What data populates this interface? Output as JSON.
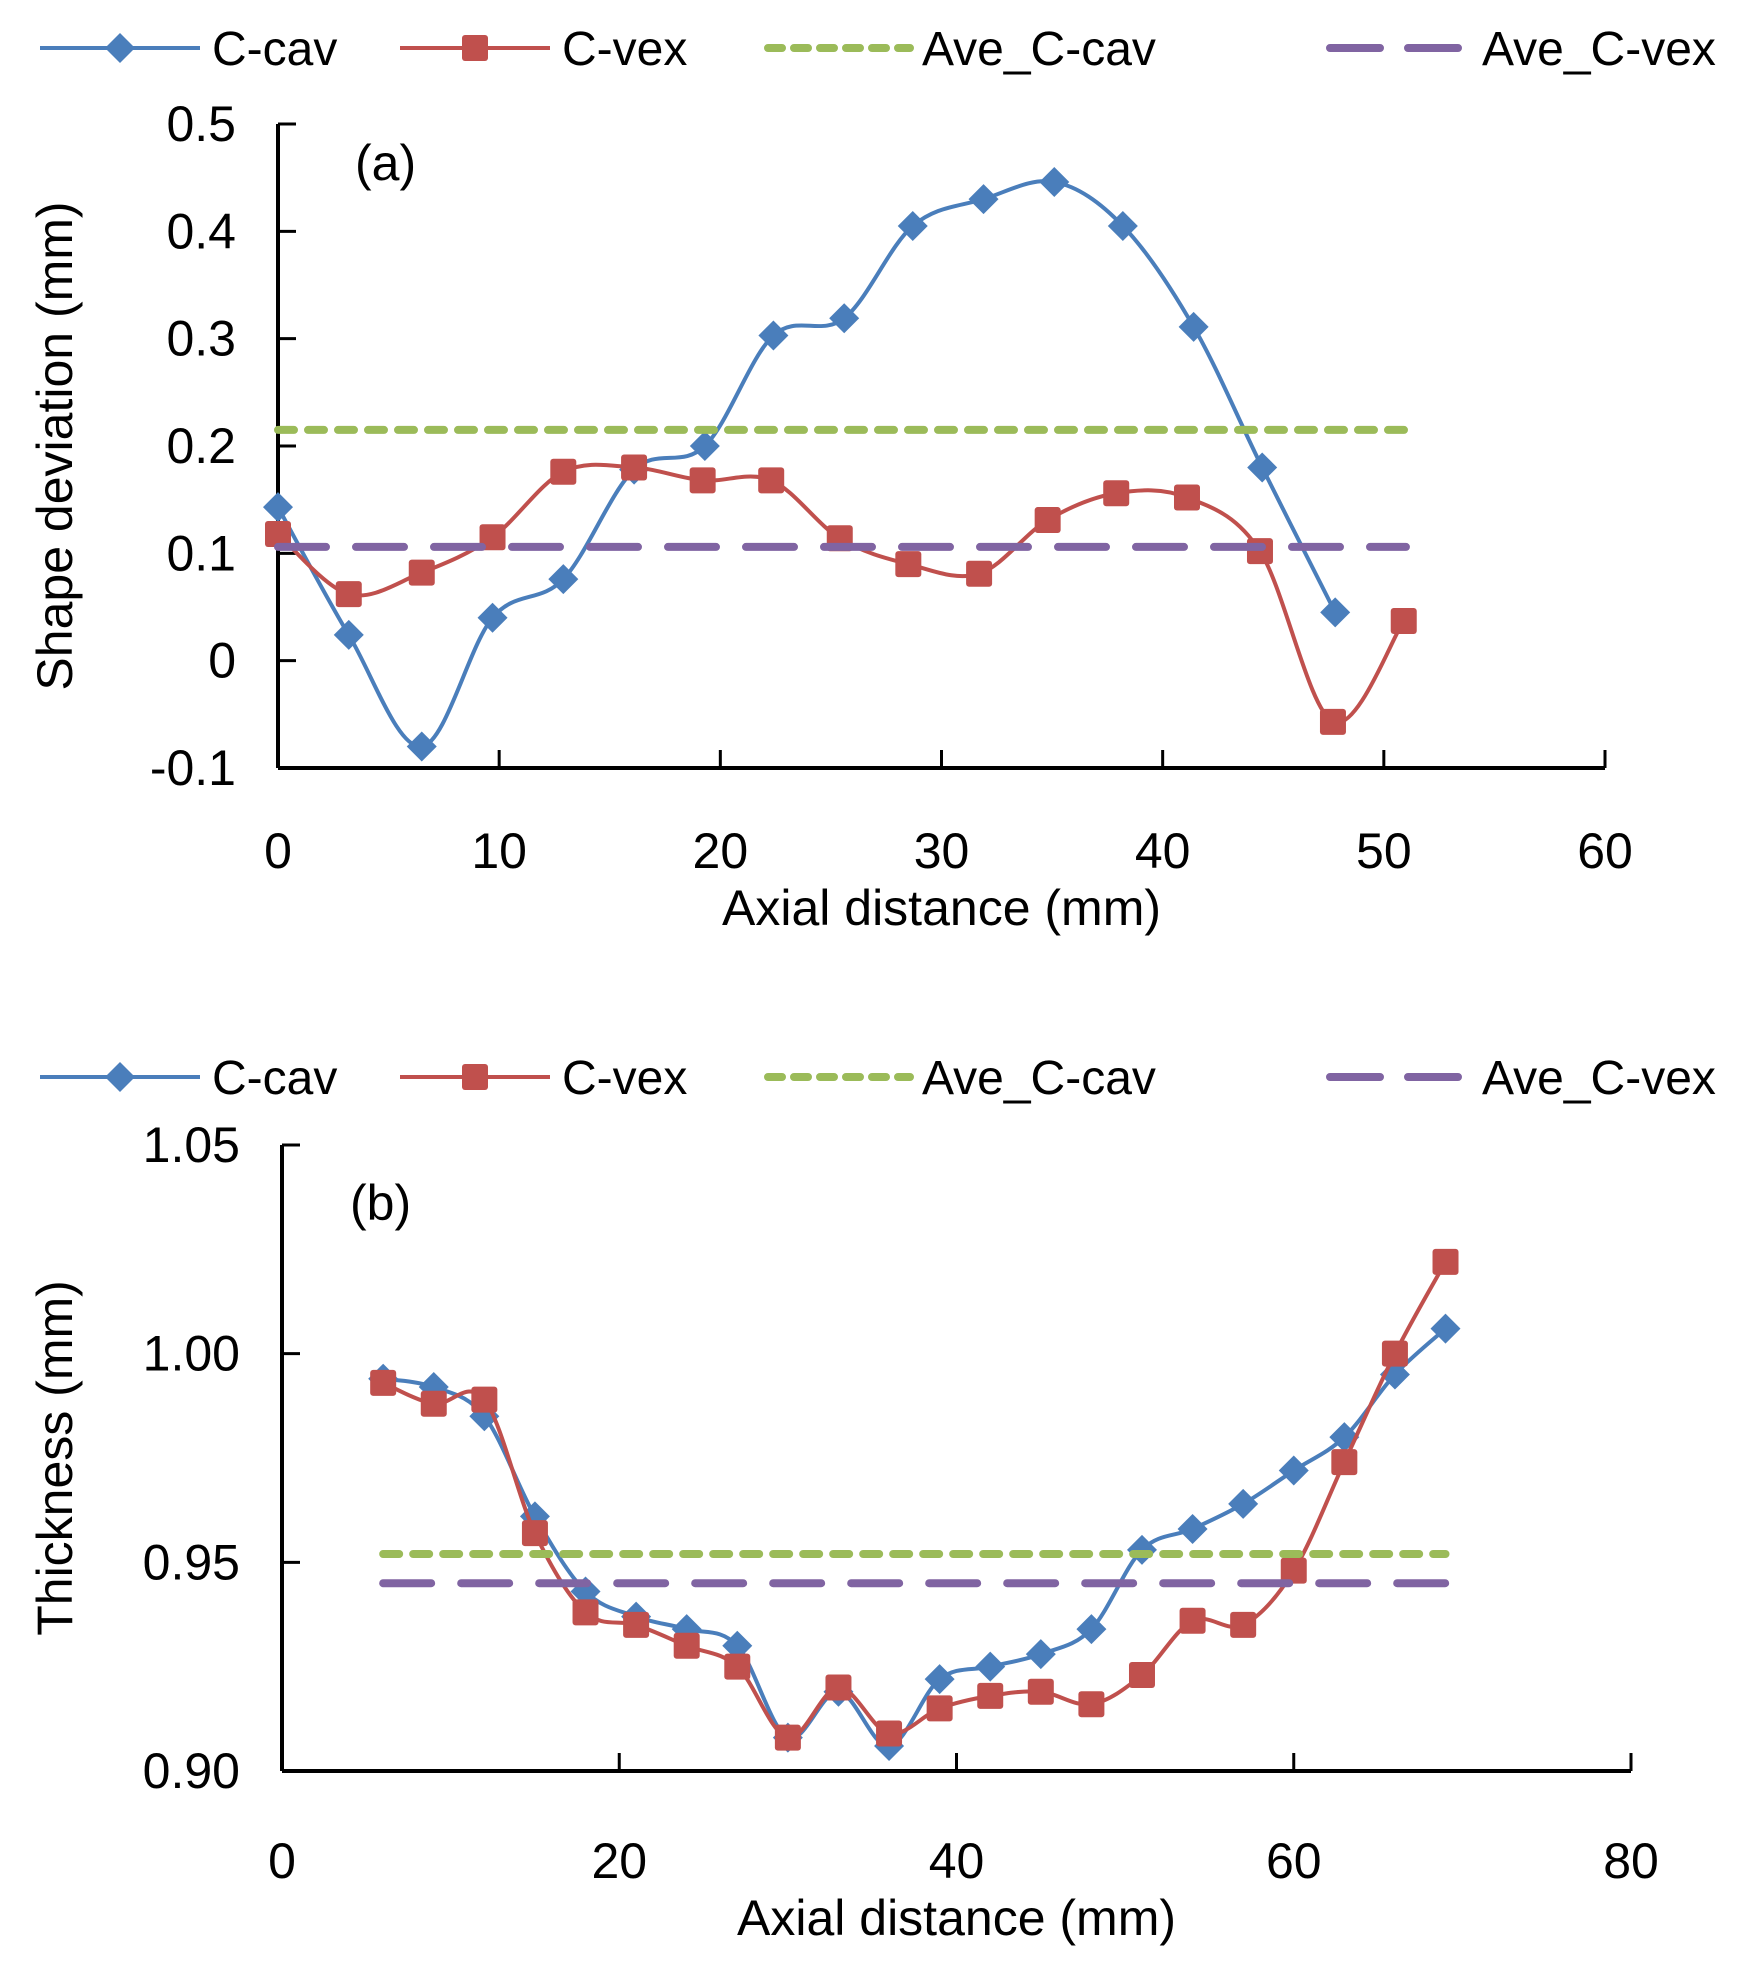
{
  "chart_data": [
    {
      "type": "line",
      "panel_label": "(a)",
      "title": "",
      "xlabel": "Axial distance (mm)",
      "ylabel": "Shape deviation (mm)",
      "xlim": [
        0,
        60
      ],
      "ylim": [
        -0.1,
        0.5
      ],
      "xticks": [
        0,
        10,
        20,
        30,
        40,
        50,
        60
      ],
      "xtick_labels": [
        "0",
        "10",
        "20",
        "30",
        "40",
        "50",
        "60"
      ],
      "yticks": [
        -0.1,
        0,
        0.1,
        0.2,
        0.3,
        0.4,
        0.5
      ],
      "ytick_labels": [
        "-0.1",
        "0",
        "0.1",
        "0.2",
        "0.3",
        "0.4",
        "0.5"
      ],
      "grid": false,
      "legend_position": "top",
      "series": [
        {
          "name": "C-cav",
          "color": "#4a7ebb",
          "marker": "diamond",
          "style": "smooth",
          "x": [
            0,
            3.2,
            6.5,
            9.7,
            12.9,
            16.1,
            19.3,
            22.4,
            25.6,
            28.7,
            31.9,
            35.1,
            38.2,
            41.4,
            44.5,
            47.8
          ],
          "y": [
            0.143,
            0.024,
            -0.08,
            0.04,
            0.076,
            0.178,
            0.2,
            0.303,
            0.319,
            0.405,
            0.43,
            0.446,
            0.405,
            0.311,
            0.18,
            0.045
          ]
        },
        {
          "name": "C-vex",
          "color": "#c0504d",
          "marker": "square",
          "style": "smooth",
          "x": [
            0,
            3.2,
            6.5,
            9.7,
            12.9,
            16.1,
            19.2,
            22.3,
            25.4,
            28.5,
            31.7,
            34.8,
            37.9,
            41.1,
            44.4,
            47.7,
            50.9
          ],
          "y": [
            0.118,
            0.062,
            0.082,
            0.115,
            0.176,
            0.18,
            0.168,
            0.168,
            0.114,
            0.09,
            0.081,
            0.131,
            0.156,
            0.152,
            0.102,
            -0.057,
            0.037
          ]
        },
        {
          "name": "Ave_C-cav",
          "color": "#9bbb59",
          "style": "dotted",
          "x": [
            0,
            51
          ],
          "y": [
            0.215,
            0.215
          ]
        },
        {
          "name": "Ave_C-vex",
          "color": "#8064a2",
          "style": "dashed",
          "x": [
            0,
            51
          ],
          "y": [
            0.106,
            0.106
          ]
        }
      ]
    },
    {
      "type": "line",
      "panel_label": "(b)",
      "title": "",
      "xlabel": "Axial distance (mm)",
      "ylabel": "Thickness (mm)",
      "xlim": [
        0,
        80
      ],
      "ylim": [
        0.9,
        1.05
      ],
      "xticks": [
        0,
        20,
        40,
        60,
        80
      ],
      "xtick_labels": [
        "0",
        "20",
        "40",
        "60",
        "80"
      ],
      "yticks": [
        0.9,
        0.95,
        1.0,
        1.05
      ],
      "ytick_labels": [
        "0.90",
        "0.95",
        "1.00",
        "1.05"
      ],
      "grid": false,
      "legend_position": "top",
      "series": [
        {
          "name": "C-cav",
          "color": "#4a7ebb",
          "marker": "diamond",
          "style": "smooth",
          "x": [
            6,
            9,
            12,
            15,
            18,
            21,
            24,
            27,
            30,
            33,
            36,
            39,
            42,
            45,
            48,
            51,
            54,
            57,
            60,
            63,
            66,
            69
          ],
          "y": [
            0.994,
            0.992,
            0.985,
            0.961,
            0.943,
            0.937,
            0.934,
            0.93,
            0.908,
            0.919,
            0.906,
            0.922,
            0.925,
            0.928,
            0.934,
            0.953,
            0.958,
            0.964,
            0.972,
            0.98,
            0.995,
            1.006
          ]
        },
        {
          "name": "C-vex",
          "color": "#c0504d",
          "marker": "square",
          "style": "smooth",
          "x": [
            6,
            9,
            12,
            15,
            18,
            21,
            24,
            27,
            30,
            33,
            36,
            39,
            42,
            45,
            48,
            51,
            54,
            57,
            60,
            63,
            66,
            69
          ],
          "y": [
            0.993,
            0.988,
            0.989,
            0.957,
            0.938,
            0.935,
            0.93,
            0.925,
            0.908,
            0.92,
            0.909,
            0.915,
            0.918,
            0.919,
            0.916,
            0.923,
            0.936,
            0.935,
            0.948,
            0.974,
            1.0,
            1.022
          ]
        },
        {
          "name": "Ave_C-cav",
          "color": "#9bbb59",
          "style": "dotted",
          "x": [
            6,
            69
          ],
          "y": [
            0.952,
            0.952
          ]
        },
        {
          "name": "Ave_C-vex",
          "color": "#8064a2",
          "style": "dashed",
          "x": [
            6,
            69
          ],
          "y": [
            0.945,
            0.945
          ]
        }
      ]
    }
  ]
}
